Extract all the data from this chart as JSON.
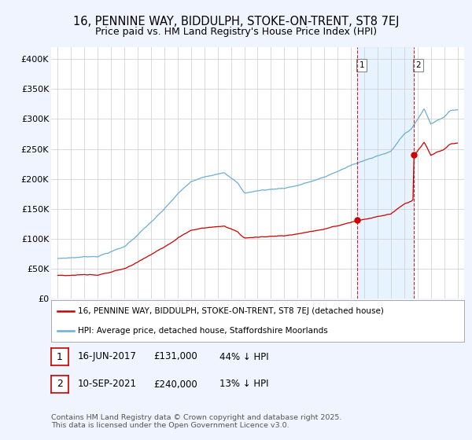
{
  "title": "16, PENNINE WAY, BIDDULPH, STOKE-ON-TRENT, ST8 7EJ",
  "subtitle": "Price paid vs. HM Land Registry's House Price Index (HPI)",
  "ylim": [
    0,
    420000
  ],
  "yticks": [
    0,
    50000,
    100000,
    150000,
    200000,
    250000,
    300000,
    350000,
    400000
  ],
  "ytick_labels": [
    "£0",
    "£50K",
    "£100K",
    "£150K",
    "£200K",
    "£250K",
    "£300K",
    "£350K",
    "£400K"
  ],
  "hpi_color": "#6baed6",
  "price_color": "#cc0000",
  "shade_color": "#ddeeff",
  "sale1_year": 2017.46,
  "sale2_year": 2021.71,
  "sale1_price": 131000,
  "sale2_price": 240000,
  "sale1_date_str": "16-JUN-2017",
  "sale1_price_str": "£131,000",
  "sale1_pct_str": "44% ↓ HPI",
  "sale2_date_str": "10-SEP-2021",
  "sale2_price_str": "£240,000",
  "sale2_pct_str": "13% ↓ HPI",
  "legend_label1": "16, PENNINE WAY, BIDDULPH, STOKE-ON-TRENT, ST8 7EJ (detached house)",
  "legend_label2": "HPI: Average price, detached house, Staffordshire Moorlands",
  "footer": "Contains HM Land Registry data © Crown copyright and database right 2025.\nThis data is licensed under the Open Government Licence v3.0.",
  "background_color": "#f0f4ff",
  "plot_bg_color": "#ffffff",
  "title_fontsize": 10.5,
  "subtitle_fontsize": 9
}
